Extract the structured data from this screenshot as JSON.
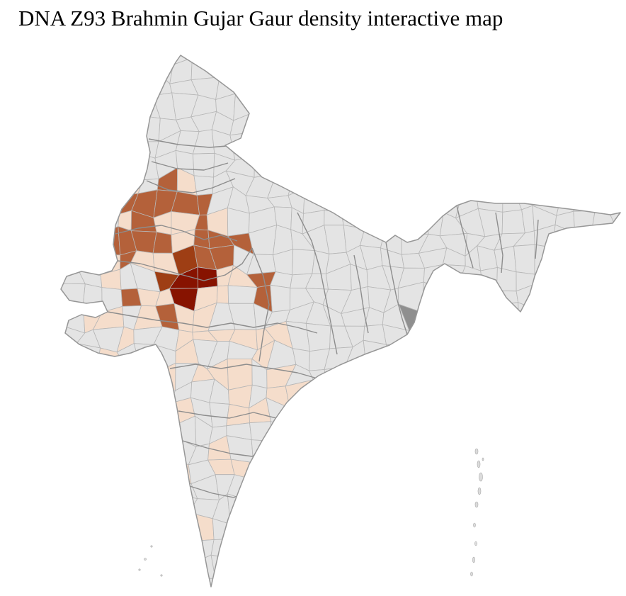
{
  "title": "DNA Z93 Brahmin Gujar Gaur density interactive map",
  "map": {
    "palette": {
      "background": "#ffffff",
      "district_default": "#e4e4e4",
      "district_border": "#b6b6b6",
      "state_border": "#8d8d8d",
      "country_border": "#979797",
      "density_low": "#f5ddcb",
      "density_medium": "#b4613a",
      "density_high": "#9e3e14",
      "density_highest": "#871300",
      "island_fill": "#dcdcdc",
      "island_border": "#a8a8a8",
      "gray_highlight": "#8f8f8f"
    }
  }
}
